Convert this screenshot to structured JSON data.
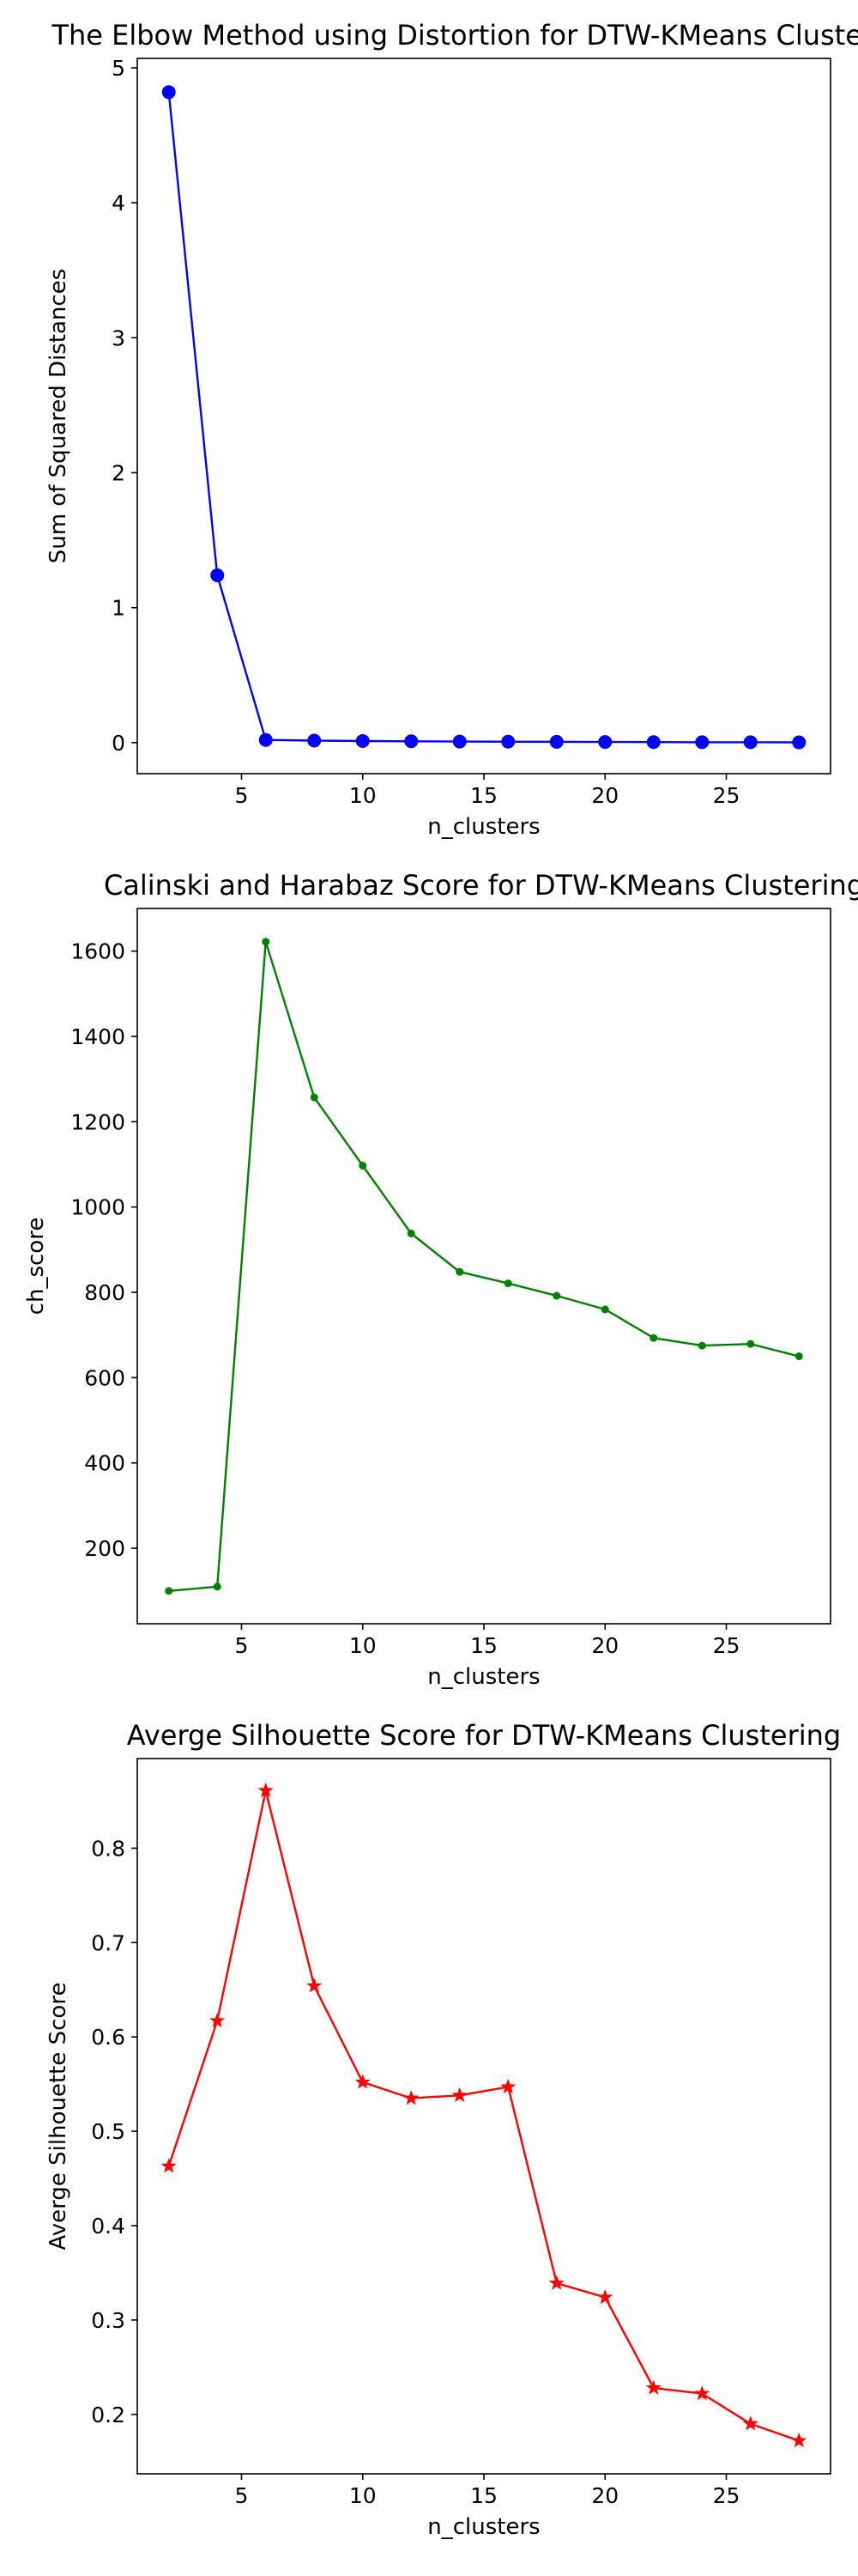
{
  "chart_data": [
    {
      "type": "line",
      "title": "The Elbow Method using Distortion for DTW-KMeans Clustering",
      "xlabel": "n_clusters",
      "ylabel": "Sum of Squared Distances",
      "xlim": [
        0.7,
        29.3
      ],
      "ylim": [
        -0.23,
        5.07
      ],
      "xticks": [
        5,
        10,
        15,
        20,
        25
      ],
      "xtick_labels": [
        "5",
        "10",
        "15",
        "20",
        "25"
      ],
      "yticks": [
        0,
        1,
        2,
        3,
        4,
        5
      ],
      "ytick_labels": [
        "0",
        "1",
        "2",
        "3",
        "4",
        "5"
      ],
      "grid": false,
      "color": "#0000ff",
      "marker": "circle",
      "marker_size": 8,
      "line_width": 2.4,
      "x": [
        2,
        4,
        6,
        8,
        10,
        12,
        14,
        16,
        18,
        20,
        22,
        24,
        26,
        28
      ],
      "values": [
        4.82,
        1.24,
        0.02,
        0.015,
        0.012,
        0.01,
        0.008,
        0.007,
        0.006,
        0.005,
        0.004,
        0.003,
        0.003,
        0.002
      ]
    },
    {
      "type": "line",
      "title": "Calinski and Harabaz Score for DTW-KMeans Clustering",
      "xlabel": "n_clusters",
      "ylabel": "ch_score",
      "xlim": [
        0.7,
        29.3
      ],
      "ylim": [
        23,
        1700
      ],
      "xticks": [
        5,
        10,
        15,
        20,
        25
      ],
      "xtick_labels": [
        "5",
        "10",
        "15",
        "20",
        "25"
      ],
      "yticks": [
        200,
        400,
        600,
        800,
        1000,
        1200,
        1400,
        1600
      ],
      "ytick_labels": [
        "200",
        "400",
        "600",
        "800",
        "1000",
        "1200",
        "1400",
        "1600"
      ],
      "grid": false,
      "color": "#008000",
      "marker": "point",
      "marker_size": 4.5,
      "line_width": 2.4,
      "x": [
        2,
        4,
        6,
        8,
        10,
        12,
        14,
        16,
        18,
        20,
        22,
        24,
        26,
        28
      ],
      "values": [
        100,
        110,
        1622,
        1257,
        1097,
        938,
        848,
        821,
        792,
        760,
        693,
        675,
        679,
        650
      ]
    },
    {
      "type": "line",
      "title": "Averge Silhouette Score for DTW-KMeans Clustering",
      "xlabel": "n_clusters",
      "ylabel": "Averge Silhouette Score",
      "xlim": [
        0.7,
        29.3
      ],
      "ylim": [
        0.137,
        0.895
      ],
      "xticks": [
        5,
        10,
        15,
        20,
        25
      ],
      "xtick_labels": [
        "5",
        "10",
        "15",
        "20",
        "25"
      ],
      "yticks": [
        0.2,
        0.3,
        0.4,
        0.5,
        0.6,
        0.7,
        0.8
      ],
      "ytick_labels": [
        "0.2",
        "0.3",
        "0.4",
        "0.5",
        "0.6",
        "0.7",
        "0.8"
      ],
      "grid": false,
      "color": "#ff0000",
      "marker": "star",
      "marker_size": 8,
      "line_width": 2.4,
      "x": [
        2,
        4,
        6,
        8,
        10,
        12,
        14,
        16,
        18,
        20,
        22,
        24,
        26,
        28
      ],
      "values": [
        0.463,
        0.617,
        0.861,
        0.654,
        0.552,
        0.535,
        0.538,
        0.547,
        0.339,
        0.324,
        0.228,
        0.222,
        0.19,
        0.172
      ]
    }
  ]
}
